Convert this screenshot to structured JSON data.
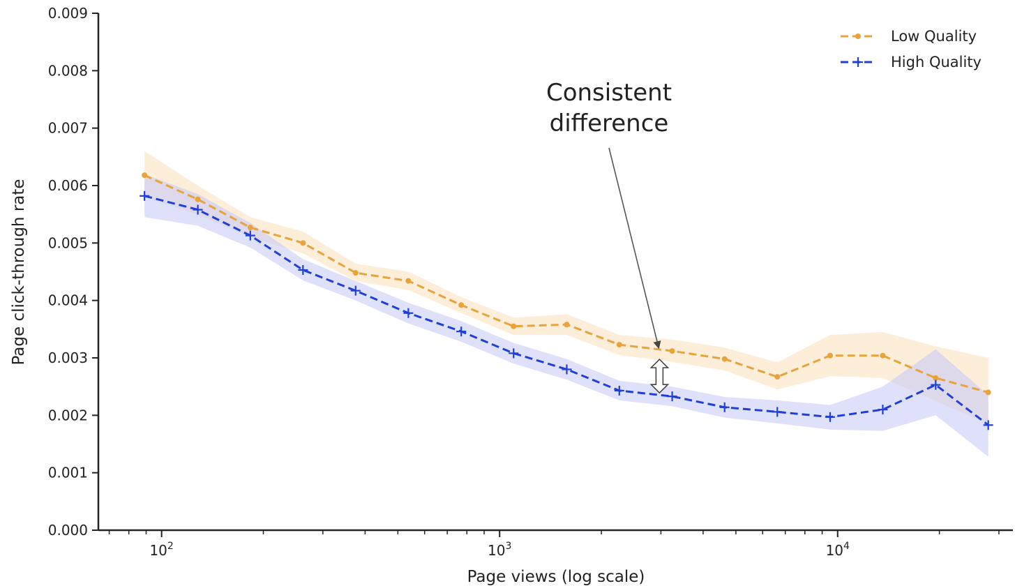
{
  "chart_data": {
    "type": "line",
    "xlabel": "Page views (log scale)",
    "ylabel": "Page click-through rate",
    "xscale": "log",
    "xlim": [
      65,
      33000
    ],
    "ylim": [
      0,
      0.009
    ],
    "y_ticks": [
      "0.000",
      "0.001",
      "0.002",
      "0.003",
      "0.004",
      "0.005",
      "0.006",
      "0.007",
      "0.008",
      "0.009"
    ],
    "x_major_ticks": [
      {
        "value": 100,
        "base": "10",
        "exp": "2"
      },
      {
        "value": 1000,
        "base": "10",
        "exp": "3"
      },
      {
        "value": 10000,
        "base": "10",
        "exp": "4"
      }
    ],
    "grid": false,
    "legend": "top-right",
    "series": [
      {
        "name": "Low Quality",
        "color": "#E8A33A",
        "marker": "dot",
        "x": [
          89,
          128,
          183,
          262,
          375,
          537,
          770,
          1100,
          1580,
          2260,
          3240,
          4630,
          6630,
          9500,
          13600,
          19500,
          27900
        ],
        "values": [
          0.00618,
          0.00576,
          0.00527,
          0.005,
          0.00448,
          0.00434,
          0.00392,
          0.00355,
          0.00358,
          0.00323,
          0.00312,
          0.00298,
          0.00267,
          0.00304,
          0.00304,
          0.00265,
          0.0024
        ],
        "ci_lower": [
          0.0058,
          0.0055,
          0.0051,
          0.00482,
          0.00434,
          0.00418,
          0.00378,
          0.0034,
          0.0034,
          0.00305,
          0.00293,
          0.00278,
          0.00245,
          0.00268,
          0.00265,
          0.00225,
          0.00185
        ],
        "ci_upper": [
          0.0066,
          0.006,
          0.00545,
          0.0052,
          0.00464,
          0.0045,
          0.00406,
          0.0037,
          0.00376,
          0.0034,
          0.00332,
          0.00318,
          0.00292,
          0.0034,
          0.00345,
          0.0032,
          0.003
        ]
      },
      {
        "name": "High Quality",
        "color": "#1F3FD8",
        "marker": "plus",
        "x": [
          89,
          128,
          183,
          262,
          375,
          537,
          770,
          1100,
          1580,
          2260,
          3240,
          4630,
          6630,
          9500,
          13600,
          19500,
          27900
        ],
        "values": [
          0.00582,
          0.00558,
          0.00513,
          0.00453,
          0.00417,
          0.00378,
          0.00346,
          0.00308,
          0.0028,
          0.00243,
          0.00233,
          0.00214,
          0.00206,
          0.00197,
          0.0021,
          0.00253,
          0.00183
        ],
        "ci_lower": [
          0.00545,
          0.0053,
          0.00492,
          0.00435,
          0.004,
          0.0036,
          0.00328,
          0.0029,
          0.00262,
          0.00226,
          0.00216,
          0.00196,
          0.00186,
          0.00175,
          0.00173,
          0.002,
          0.00128
        ],
        "ci_upper": [
          0.0062,
          0.00585,
          0.00535,
          0.00472,
          0.00434,
          0.00396,
          0.00364,
          0.00326,
          0.00298,
          0.0026,
          0.0025,
          0.00232,
          0.00226,
          0.00218,
          0.0025,
          0.00315,
          0.00235
        ]
      }
    ],
    "annotations": [
      {
        "line1": "Consistent",
        "line2": "difference"
      }
    ]
  }
}
